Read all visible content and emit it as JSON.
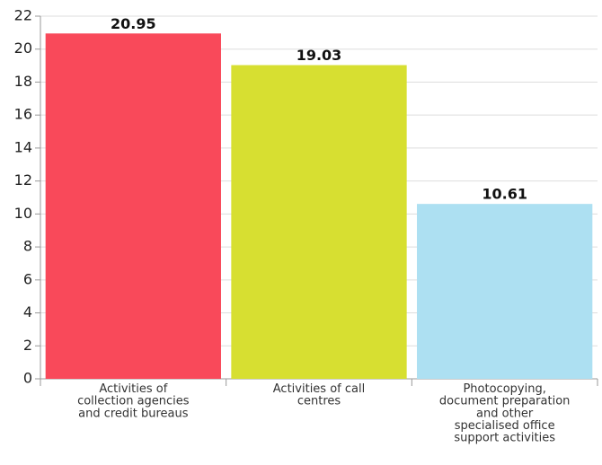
{
  "chart_data": {
    "type": "bar",
    "categories": [
      "Activities of\ncollection agencies\nand credit bureaus",
      "Activities of call\ncentres",
      "Photocopying,\ndocument preparation\nand other\nspecialised office\nsupport activities"
    ],
    "values": [
      20.95,
      19.03,
      10.61
    ],
    "colors": [
      "#f9495a",
      "#d7df31",
      "#ade0f2"
    ],
    "ylim": [
      0,
      22
    ],
    "yticks": [
      0,
      2,
      4,
      6,
      8,
      10,
      12,
      14,
      16,
      18,
      20,
      22
    ],
    "grid": true
  }
}
